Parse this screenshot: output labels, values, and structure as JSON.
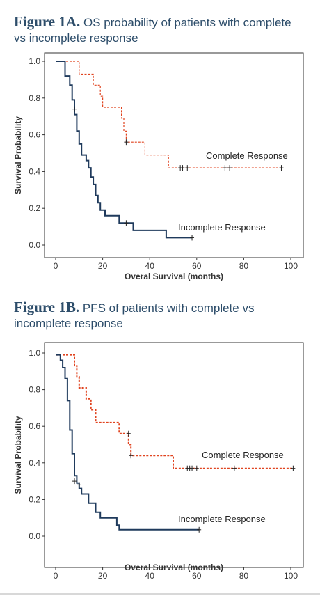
{
  "figures": [
    {
      "title_bold": "Figure 1A.",
      "title_rest": " OS probability of patients with complete vs incomplete response",
      "chart_data": {
        "type": "line",
        "subtype": "kaplan-meier step",
        "xlabel": "Overal Survival (months)",
        "ylabel": "Survival Probability",
        "xlim": [
          0,
          100
        ],
        "ylim": [
          0,
          1
        ],
        "x_ticks": [
          "0",
          "20",
          "40",
          "60",
          "80",
          "100"
        ],
        "y_ticks": [
          "0.0",
          "0.2",
          "0.4",
          "0.6",
          "0.8",
          "1.0"
        ],
        "grid": false,
        "series": [
          {
            "name": "Complete Response",
            "color": "#e0431f",
            "dashed": true,
            "steps": [
              [
                0,
                1.0
              ],
              [
                10,
                1.0
              ],
              [
                10,
                0.93
              ],
              [
                16,
                0.93
              ],
              [
                16,
                0.87
              ],
              [
                19,
                0.87
              ],
              [
                19,
                0.81
              ],
              [
                20,
                0.81
              ],
              [
                20,
                0.75
              ],
              [
                28,
                0.75
              ],
              [
                28,
                0.69
              ],
              [
                29,
                0.69
              ],
              [
                29,
                0.62
              ],
              [
                30,
                0.62
              ],
              [
                30,
                0.56
              ],
              [
                38,
                0.56
              ],
              [
                38,
                0.49
              ],
              [
                48,
                0.49
              ],
              [
                48,
                0.42
              ],
              [
                96,
                0.42
              ]
            ],
            "censored": [
              [
                30,
                0.56
              ],
              [
                53,
                0.42
              ],
              [
                54,
                0.42
              ],
              [
                56,
                0.42
              ],
              [
                72,
                0.42
              ],
              [
                74,
                0.42
              ],
              [
                96,
                0.42
              ]
            ]
          },
          {
            "name": "Incomplete Response",
            "color": "#1f3a5c",
            "dashed": false,
            "steps": [
              [
                0,
                1.0
              ],
              [
                4,
                1.0
              ],
              [
                4,
                0.92
              ],
              [
                6,
                0.92
              ],
              [
                6,
                0.87
              ],
              [
                7,
                0.87
              ],
              [
                7,
                0.79
              ],
              [
                8,
                0.79
              ],
              [
                8,
                0.71
              ],
              [
                9,
                0.71
              ],
              [
                9,
                0.62
              ],
              [
                10,
                0.62
              ],
              [
                10,
                0.55
              ],
              [
                11,
                0.55
              ],
              [
                11,
                0.49
              ],
              [
                13,
                0.49
              ],
              [
                13,
                0.46
              ],
              [
                14,
                0.46
              ],
              [
                14,
                0.42
              ],
              [
                15,
                0.42
              ],
              [
                15,
                0.37
              ],
              [
                16,
                0.37
              ],
              [
                16,
                0.33
              ],
              [
                17,
                0.33
              ],
              [
                17,
                0.27
              ],
              [
                18,
                0.27
              ],
              [
                18,
                0.23
              ],
              [
                19,
                0.23
              ],
              [
                19,
                0.19
              ],
              [
                21,
                0.19
              ],
              [
                21,
                0.16
              ],
              [
                27,
                0.16
              ],
              [
                27,
                0.12
              ],
              [
                33,
                0.12
              ],
              [
                33,
                0.08
              ],
              [
                47,
                0.08
              ],
              [
                47,
                0.04
              ],
              [
                58,
                0.04
              ]
            ],
            "censored": [
              [
                8,
                0.74
              ],
              [
                30,
                0.12
              ],
              [
                58,
                0.04
              ]
            ]
          }
        ]
      }
    },
    {
      "title_bold": "Figure 1B.",
      "title_rest": " PFS of patients with complete vs incomplete response",
      "chart_data": {
        "type": "line",
        "subtype": "kaplan-meier step",
        "xlabel": "Overal Survival (months)",
        "ylabel": "Survival Probability",
        "xlim": [
          0,
          100
        ],
        "ylim": [
          0,
          1
        ],
        "x_ticks": [
          "0",
          "20",
          "40",
          "60",
          "80",
          "100"
        ],
        "y_ticks": [
          "0.0",
          "0.2",
          "0.4",
          "0.6",
          "0.8",
          "1.0"
        ],
        "grid": false,
        "series": [
          {
            "name": "Complete Response",
            "color": "#e0431f",
            "dashed": true,
            "steps": [
              [
                0,
                0.99
              ],
              [
                8,
                0.99
              ],
              [
                8,
                0.93
              ],
              [
                9,
                0.93
              ],
              [
                9,
                0.87
              ],
              [
                10,
                0.87
              ],
              [
                10,
                0.81
              ],
              [
                13,
                0.81
              ],
              [
                13,
                0.75
              ],
              [
                15,
                0.75
              ],
              [
                15,
                0.69
              ],
              [
                17,
                0.69
              ],
              [
                17,
                0.62
              ],
              [
                27,
                0.62
              ],
              [
                27,
                0.56
              ],
              [
                31,
                0.56
              ],
              [
                31,
                0.5
              ],
              [
                32,
                0.5
              ],
              [
                32,
                0.44
              ],
              [
                50,
                0.44
              ],
              [
                50,
                0.37
              ],
              [
                101,
                0.37
              ]
            ],
            "censored": [
              [
                31,
                0.56
              ],
              [
                32,
                0.44
              ],
              [
                56,
                0.37
              ],
              [
                57,
                0.37
              ],
              [
                58,
                0.37
              ],
              [
                60,
                0.37
              ],
              [
                76,
                0.37
              ],
              [
                101,
                0.37
              ]
            ]
          },
          {
            "name": "Incomplete Response",
            "color": "#1f3a5c",
            "dashed": false,
            "steps": [
              [
                0,
                0.99
              ],
              [
                2,
                0.99
              ],
              [
                2,
                0.96
              ],
              [
                3,
                0.96
              ],
              [
                3,
                0.92
              ],
              [
                4,
                0.92
              ],
              [
                4,
                0.86
              ],
              [
                5,
                0.86
              ],
              [
                5,
                0.74
              ],
              [
                6,
                0.74
              ],
              [
                6,
                0.58
              ],
              [
                7,
                0.58
              ],
              [
                7,
                0.45
              ],
              [
                8,
                0.45
              ],
              [
                8,
                0.33
              ],
              [
                9,
                0.33
              ],
              [
                9,
                0.29
              ],
              [
                10,
                0.29
              ],
              [
                10,
                0.26
              ],
              [
                11,
                0.26
              ],
              [
                11,
                0.23
              ],
              [
                14,
                0.23
              ],
              [
                14,
                0.18
              ],
              [
                17,
                0.18
              ],
              [
                17,
                0.13
              ],
              [
                19,
                0.13
              ],
              [
                19,
                0.1
              ],
              [
                26,
                0.1
              ],
              [
                26,
                0.06
              ],
              [
                27,
                0.06
              ],
              [
                27,
                0.035
              ],
              [
                61,
                0.035
              ]
            ],
            "censored": [
              [
                8,
                0.3
              ],
              [
                10,
                0.28
              ],
              [
                61,
                0.035
              ]
            ]
          }
        ]
      }
    }
  ]
}
